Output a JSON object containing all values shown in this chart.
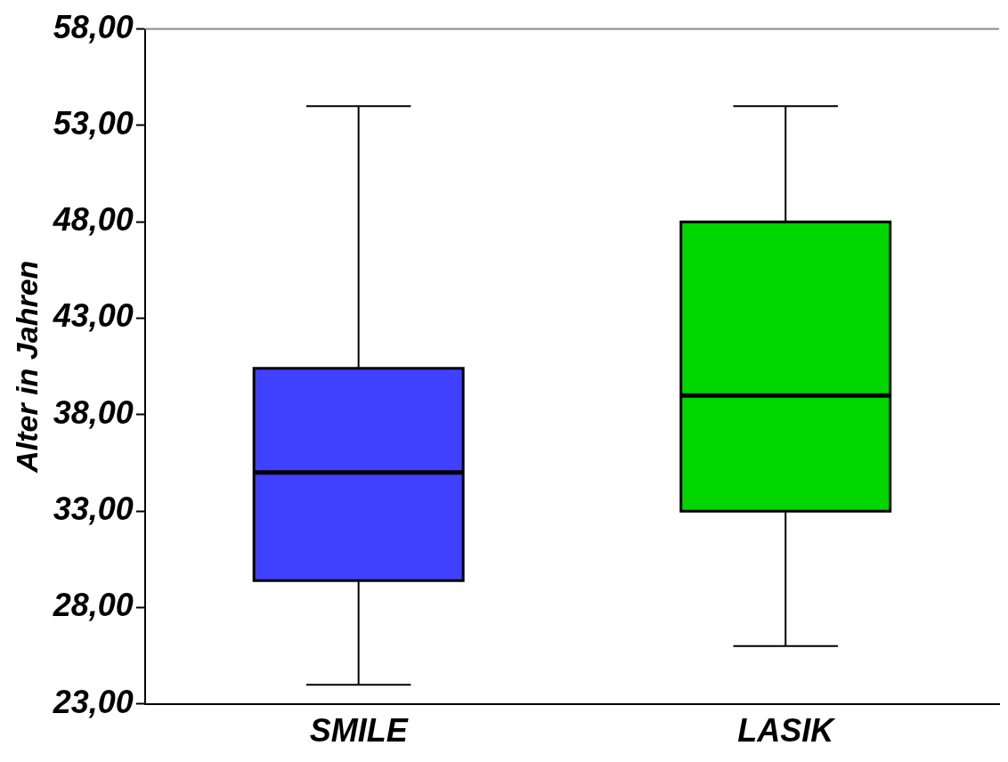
{
  "chart_data": {
    "type": "box",
    "ylabel": "Alter in Jahren",
    "categories": [
      "SMILE",
      "LASIK"
    ],
    "colors": [
      "#4040ff",
      "#00d600"
    ],
    "boxes": [
      {
        "low": 24,
        "q1": 29.4,
        "median": 35,
        "q3": 40.4,
        "high": 54
      },
      {
        "low": 26,
        "q1": 33,
        "median": 39,
        "q3": 48,
        "high": 54
      }
    ],
    "ylim": [
      23,
      58
    ],
    "yticks": [
      {
        "value": 23,
        "label": "23,00"
      },
      {
        "value": 28,
        "label": "28,00"
      },
      {
        "value": 33,
        "label": "33,00"
      },
      {
        "value": 38,
        "label": "38,00"
      },
      {
        "value": 43,
        "label": "43,00"
      },
      {
        "value": 48,
        "label": "48,00"
      },
      {
        "value": 53,
        "label": "53,00"
      },
      {
        "value": 58,
        "label": "58,00"
      }
    ],
    "grid": false,
    "legend": false
  }
}
